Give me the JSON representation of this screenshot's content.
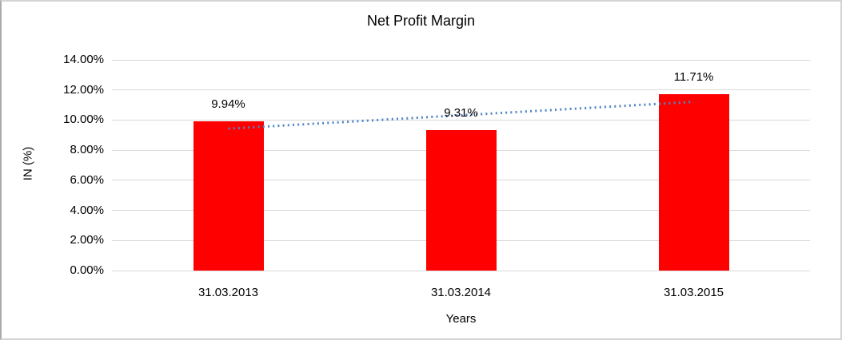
{
  "chart_data": {
    "type": "bar",
    "title": "Net Profit Margin",
    "categories": [
      "31.03.2013",
      "31.03.2014",
      "31.03.2015"
    ],
    "values": [
      9.94,
      9.31,
      11.71
    ],
    "data_labels": [
      "9.94%",
      "9.31%",
      "11.71%"
    ],
    "xlabel": "Years",
    "ylabel": "IN (%)",
    "ylim": [
      0,
      14
    ],
    "ytick_step": 2,
    "ytick_labels": [
      "0.00%",
      "2.00%",
      "4.00%",
      "6.00%",
      "8.00%",
      "10.00%",
      "12.00%",
      "14.00%"
    ],
    "legend": "none",
    "grid": "horizontal",
    "bar_color": "#ff0000",
    "gridline_color": "#d9d9d9",
    "text_color": "#000000",
    "trendline": {
      "style": "dotted",
      "color": "#4f86c6",
      "start_value": 9.43,
      "end_value": 11.21
    }
  }
}
